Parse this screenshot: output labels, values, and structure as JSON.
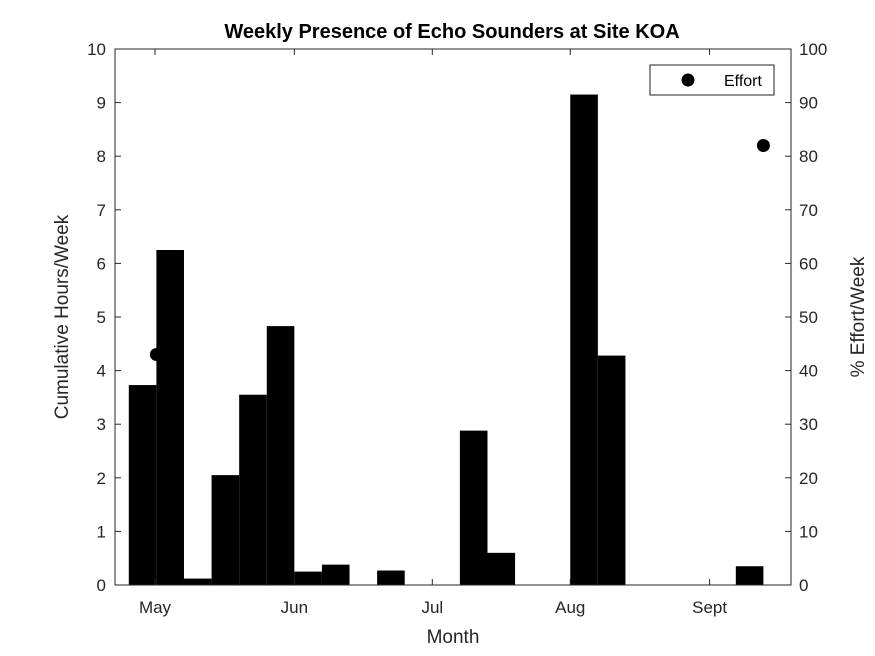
{
  "chart_data": {
    "type": "bar",
    "title": "Weekly Presence of Echo Sounders at Site KOA",
    "xlabel": "Month",
    "ylabel": "Cumulative Hours/Week",
    "y2label": "% Effort/Week",
    "ylim": [
      0,
      10
    ],
    "y2lim": [
      0,
      100
    ],
    "yticks": [
      "0",
      "1",
      "2",
      "3",
      "4",
      "5",
      "6",
      "7",
      "8",
      "9",
      "10"
    ],
    "y2ticks": [
      "0",
      "10",
      "20",
      "30",
      "40",
      "50",
      "60",
      "70",
      "80",
      "90",
      "100"
    ],
    "xticks": [
      {
        "label": "May",
        "week": 1.45
      },
      {
        "label": "Jun",
        "week": 6.5
      },
      {
        "label": "Jul",
        "week": 11.5
      },
      {
        "label": "Aug",
        "week": 16.5
      },
      {
        "label": "Sept",
        "week": 21.55
      }
    ],
    "xlim": [
      0,
      24.5
    ],
    "bar_color": "#000000",
    "bars": [
      {
        "week": 1,
        "value": 3.73
      },
      {
        "week": 2,
        "value": 6.25
      },
      {
        "week": 3,
        "value": 0.12
      },
      {
        "week": 4,
        "value": 2.05
      },
      {
        "week": 5,
        "value": 3.55
      },
      {
        "week": 6,
        "value": 4.83
      },
      {
        "week": 7,
        "value": 0.25
      },
      {
        "week": 8,
        "value": 0.38
      },
      {
        "week": 10,
        "value": 0.27
      },
      {
        "week": 13,
        "value": 2.88
      },
      {
        "week": 14,
        "value": 0.6
      },
      {
        "week": 17,
        "value": 9.15
      },
      {
        "week": 18,
        "value": 4.28
      },
      {
        "week": 23,
        "value": 0.35
      }
    ],
    "effort_series": {
      "name": "Effort",
      "points": [
        {
          "week": 1.5,
          "value": 43
        },
        {
          "week": 23.5,
          "value": 82
        }
      ]
    },
    "legend": "top-right",
    "grid": false
  }
}
